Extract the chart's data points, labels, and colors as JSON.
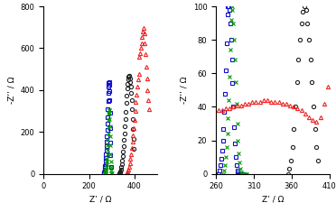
{
  "left_ax": {
    "xlim": [
      0,
      500
    ],
    "ylim": [
      0,
      800
    ],
    "xticks": [
      0,
      200,
      400
    ],
    "yticks": [
      0,
      200,
      400,
      600,
      800
    ],
    "xlabel": "Z’ / Ω",
    "ylabel": "-Z’’ / Ω",
    "PSS": {
      "color": "#1010cc",
      "marker": "s",
      "x": [
        264,
        265,
        266,
        267,
        268,
        269,
        270,
        271,
        272,
        273,
        274,
        275,
        276,
        277,
        278,
        279,
        280,
        281,
        282,
        283,
        284,
        285,
        286,
        287,
        288,
        289,
        290,
        291,
        292,
        293,
        294,
        295,
        296
      ],
      "y": [
        0,
        2,
        5,
        9,
        14,
        20,
        27,
        37,
        48,
        62,
        78,
        95,
        112,
        132,
        155,
        180,
        208,
        240,
        272,
        310,
        348,
        385,
        415,
        435,
        440,
        425,
        395,
        350,
        290,
        220,
        150,
        90,
        35
      ]
    },
    "heparin": {
      "color": "#009900",
      "marker": "x",
      "x": [
        270,
        271,
        272,
        273,
        274,
        275,
        276,
        277,
        278,
        279,
        280,
        281,
        282,
        283,
        284,
        285,
        286,
        287,
        288,
        289,
        290,
        291,
        292,
        293,
        294,
        295,
        296,
        297,
        298,
        299,
        300
      ],
      "y": [
        0,
        2,
        5,
        10,
        16,
        24,
        33,
        44,
        58,
        74,
        92,
        113,
        137,
        163,
        192,
        222,
        256,
        286,
        305,
        305,
        290,
        262,
        225,
        180,
        135,
        92,
        58,
        32,
        15,
        5,
        1
      ]
    },
    "HA": {
      "color": "#222222",
      "marker": "o",
      "x": [
        333,
        335,
        337,
        339,
        341,
        343,
        345,
        347,
        349,
        351,
        353,
        355,
        357,
        359,
        361,
        363,
        365,
        367,
        369,
        371,
        373,
        375,
        377,
        379,
        381,
        383,
        385,
        387,
        389,
        391,
        393,
        395,
        397,
        399
      ],
      "y": [
        0,
        3,
        7,
        13,
        21,
        32,
        46,
        63,
        83,
        106,
        132,
        162,
        193,
        226,
        262,
        298,
        338,
        374,
        406,
        430,
        452,
        465,
        470,
        468,
        456,
        440,
        415,
        385,
        350,
        308,
        262,
        215,
        165,
        118
      ]
    },
    "fibrinogen": {
      "color": "#ee2222",
      "marker": "^",
      "x": [
        365,
        368,
        371,
        374,
        377,
        380,
        383,
        386,
        389,
        392,
        395,
        398,
        401,
        404,
        407,
        410,
        413,
        416,
        419,
        422,
        425,
        428,
        431,
        434,
        437,
        440,
        443,
        446,
        449,
        452,
        455,
        458,
        461,
        464
      ],
      "y": [
        0,
        5,
        12,
        22,
        35,
        52,
        72,
        95,
        122,
        152,
        185,
        220,
        258,
        300,
        342,
        380,
        415,
        450,
        478,
        560,
        578,
        600,
        625,
        655,
        678,
        695,
        670,
        625,
        570,
        510,
        455,
        400,
        352,
        308
      ]
    }
  },
  "right_ax": {
    "xlim": [
      260,
      410
    ],
    "ylim": [
      0,
      100
    ],
    "xticks": [
      260,
      310,
      360,
      410
    ],
    "yticks": [
      0,
      20,
      40,
      60,
      80,
      100
    ],
    "xlabel": "Z’ / Ω",
    "ylabel": "-Z’’ / Ω",
    "PSS": {
      "color": "#1010cc",
      "marker": "s",
      "x": [
        264,
        265,
        266,
        267,
        268,
        269,
        270,
        271,
        272,
        273,
        274,
        275,
        276,
        277,
        278,
        279,
        280,
        281,
        282,
        283,
        284,
        285,
        286,
        287,
        288,
        289,
        290,
        291,
        292,
        293,
        294,
        295,
        296
      ],
      "y": [
        0,
        2,
        5,
        9,
        14,
        20,
        27,
        37,
        48,
        62,
        78,
        95,
        100,
        100,
        98,
        90,
        80,
        68,
        54,
        40,
        28,
        18,
        10,
        5,
        2,
        1,
        0,
        0,
        0,
        0,
        0,
        0,
        0
      ]
    },
    "heparin": {
      "color": "#009900",
      "marker": "x",
      "x": [
        270,
        271,
        272,
        273,
        274,
        275,
        276,
        277,
        278,
        279,
        280,
        281,
        282,
        283,
        284,
        285,
        286,
        287,
        288,
        289,
        290,
        291,
        292,
        293,
        294,
        295,
        296,
        297,
        298,
        299,
        300
      ],
      "y": [
        0,
        2,
        5,
        10,
        16,
        24,
        33,
        44,
        58,
        74,
        92,
        100,
        98,
        90,
        80,
        68,
        55,
        42,
        30,
        20,
        12,
        7,
        3,
        1,
        0,
        0,
        0,
        0,
        0,
        0,
        0
      ]
    },
    "HA": {
      "color": "#222222",
      "marker": "o",
      "x": [
        355,
        357,
        359,
        361,
        363,
        365,
        367,
        369,
        371,
        373,
        375,
        377,
        379,
        381,
        383,
        385,
        387,
        389,
        391,
        393,
        395
      ],
      "y": [
        0,
        3,
        8,
        16,
        27,
        40,
        55,
        68,
        80,
        90,
        97,
        100,
        98,
        90,
        80,
        68,
        55,
        40,
        27,
        16,
        8
      ]
    },
    "fibrinogen": {
      "color": "#ee2222",
      "marker": "^",
      "x": [
        263,
        268,
        273,
        278,
        283,
        288,
        293,
        298,
        303,
        308,
        313,
        318,
        323,
        328,
        333,
        338,
        343,
        348,
        353,
        358,
        363,
        368,
        373,
        378,
        383,
        388,
        393,
        398,
        403,
        408
      ],
      "y": [
        38,
        38,
        39,
        39,
        40,
        41,
        41,
        42,
        42,
        43,
        43,
        43,
        44,
        44,
        43,
        43,
        43,
        42,
        42,
        41,
        40,
        39,
        38,
        36,
        34,
        32,
        31,
        34,
        42,
        52
      ]
    }
  },
  "markersize": 3,
  "linewidth": 0
}
